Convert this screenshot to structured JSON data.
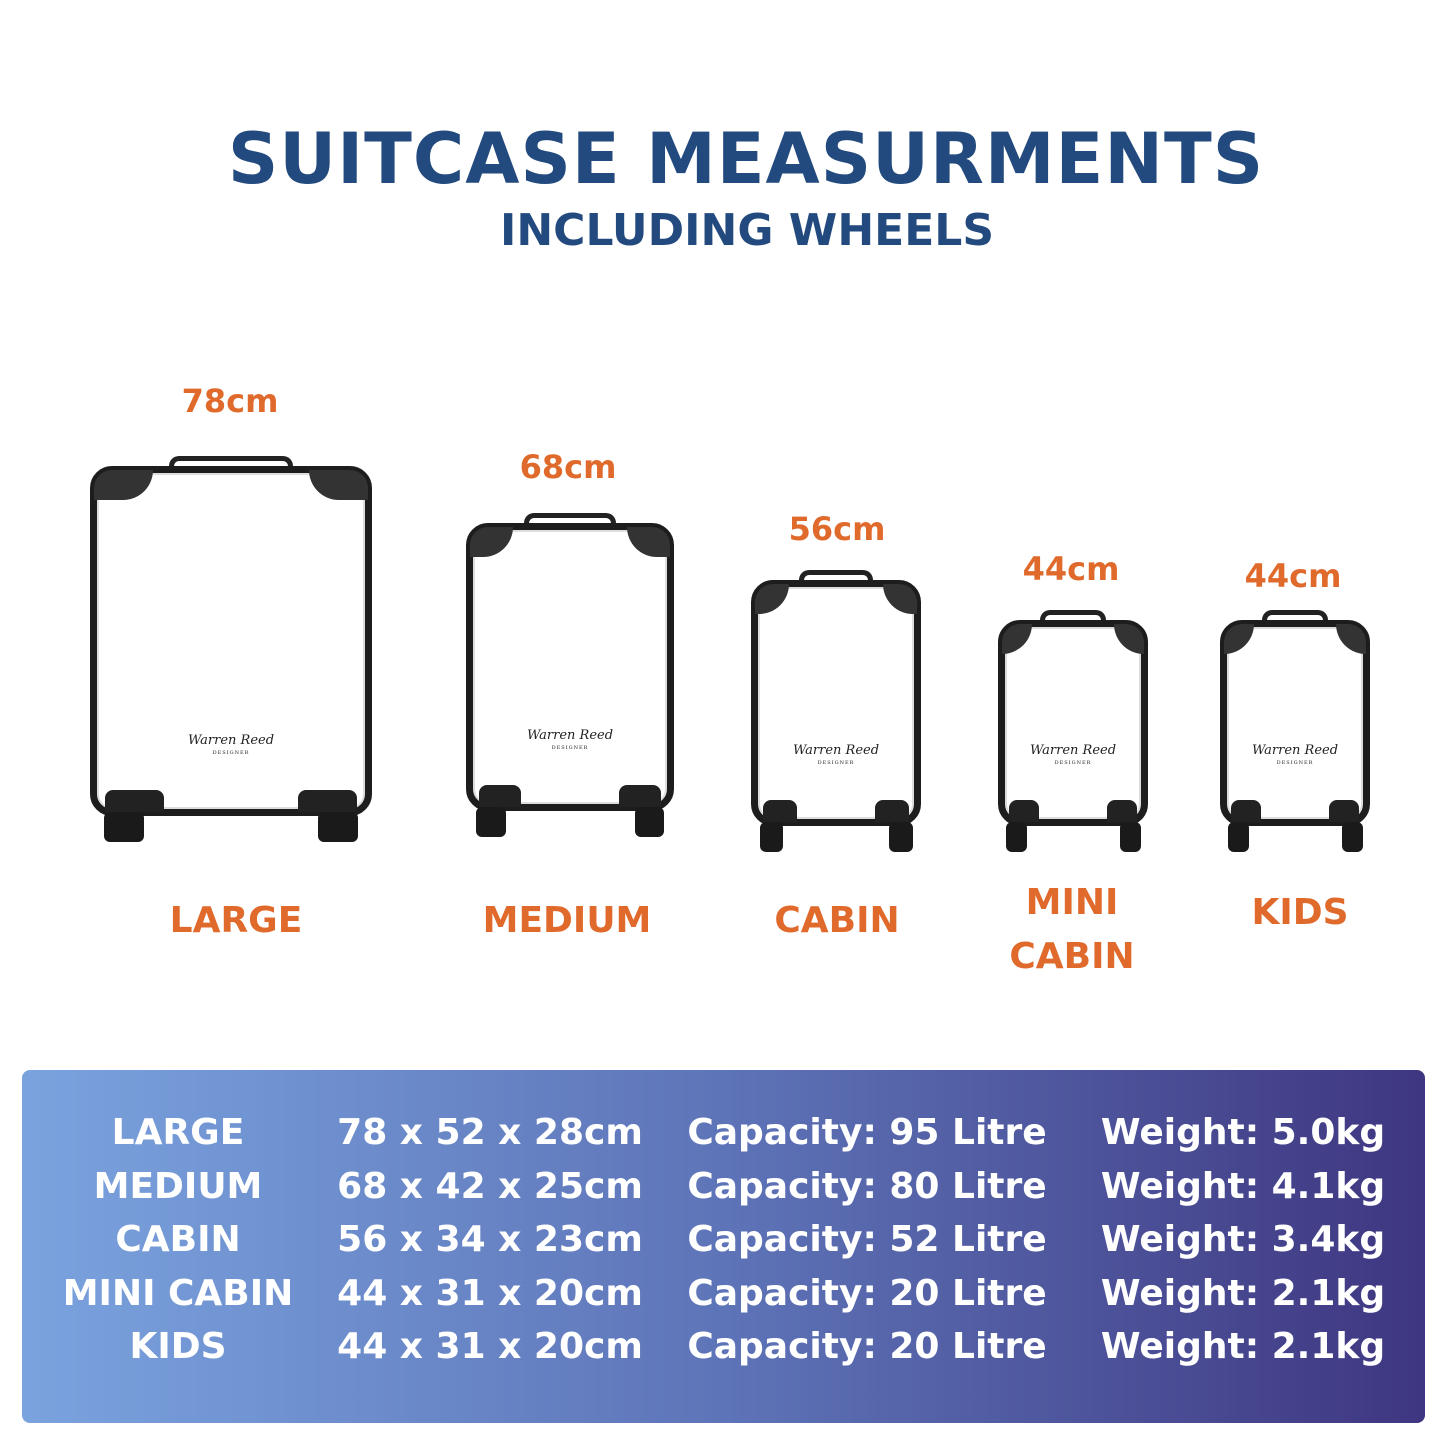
{
  "header": {
    "title": "SUITCASE MEASURMENTS",
    "subtitle": "INCLUDING WHEELS"
  },
  "suitcases": [
    {
      "name": "LARGE",
      "height": "78cm",
      "logo": "Warren Reed DESIGNER"
    },
    {
      "name": "MEDIUM",
      "height": "68cm",
      "logo": "Warren Reed DESIGNER"
    },
    {
      "name": "CABIN",
      "height": "56cm",
      "logo": "Warren Reed DESIGNER"
    },
    {
      "name_line1": "MINI",
      "name_line2": "CABIN",
      "height": "44cm",
      "logo": "Warren Reed DESIGNER"
    },
    {
      "name": "KIDS",
      "height": "44cm",
      "logo": "Warren Reed DESIGNER"
    }
  ],
  "colors": {
    "title": "#234a7e",
    "accent": "#e06a2c",
    "table_gradient_start": "#7aa3de",
    "table_gradient_end": "#3e3680"
  },
  "table": {
    "rows": [
      {
        "size": "LARGE",
        "dimensions": "78 x 52 x 28cm",
        "capacity": "Capacity: 95 Litre",
        "weight": "Weight: 5.0kg"
      },
      {
        "size": "MEDIUM",
        "dimensions": "68 x 42 x 25cm",
        "capacity": "Capacity: 80 Litre",
        "weight": "Weight: 4.1kg"
      },
      {
        "size": "CABIN",
        "dimensions": "56 x 34 x 23cm",
        "capacity": "Capacity: 52 Litre",
        "weight": "Weight: 3.4kg"
      },
      {
        "size": "MINI CABIN",
        "dimensions": "44 x 31 x 20cm",
        "capacity": "Capacity: 20 Litre",
        "weight": "Weight: 2.1kg"
      },
      {
        "size": "KIDS",
        "dimensions": "44 x 31 x 20cm",
        "capacity": "Capacity: 20 Litre",
        "weight": "Weight: 2.1kg"
      }
    ]
  }
}
